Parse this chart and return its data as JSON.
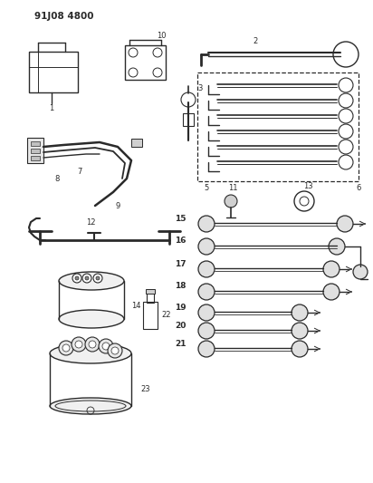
{
  "title": "91J08 4800",
  "background_color": "#ffffff",
  "line_color": "#2a2a2a",
  "figsize": [
    4.12,
    5.33
  ],
  "dpi": 100
}
